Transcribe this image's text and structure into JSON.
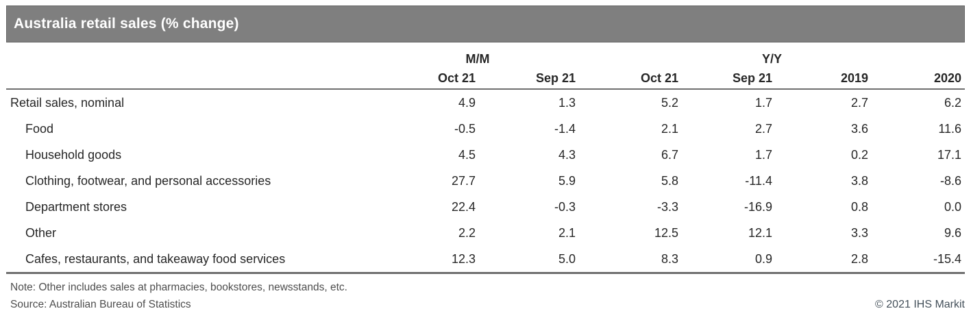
{
  "title": "Australia retail sales (% change)",
  "chart_data": {
    "type": "table",
    "title": "Australia retail sales (% change)",
    "column_groups": [
      {
        "label": "M/M",
        "span": 2
      },
      {
        "label": "Y/Y",
        "span": 4
      }
    ],
    "columns": [
      "Oct 21",
      "Sep 21",
      "Oct 21",
      "Sep 21",
      "2019",
      "2020"
    ],
    "rows": [
      {
        "label": "Retail sales, nominal",
        "indent": false,
        "values": [
          "4.9",
          "1.3",
          "5.2",
          "1.7",
          "2.7",
          "6.2"
        ]
      },
      {
        "label": "Food",
        "indent": true,
        "values": [
          "-0.5",
          "-1.4",
          "2.1",
          "2.7",
          "3.6",
          "11.6"
        ]
      },
      {
        "label": "Household goods",
        "indent": true,
        "values": [
          "4.5",
          "4.3",
          "6.7",
          "1.7",
          "0.2",
          "17.1"
        ]
      },
      {
        "label": "Clothing, footwear, and personal accessories",
        "indent": true,
        "values": [
          "27.7",
          "5.9",
          "5.8",
          "-11.4",
          "3.8",
          "-8.6"
        ]
      },
      {
        "label": "Department stores",
        "indent": true,
        "values": [
          "22.4",
          "-0.3",
          "-3.3",
          "-16.9",
          "0.8",
          "0.0"
        ]
      },
      {
        "label": "Other",
        "indent": true,
        "values": [
          "2.2",
          "2.1",
          "12.5",
          "12.1",
          "3.3",
          "9.6"
        ]
      },
      {
        "label": "Cafes, restaurants, and takeaway food services",
        "indent": true,
        "values": [
          "12.3",
          "5.0",
          "8.3",
          "0.9",
          "2.8",
          "-15.4"
        ]
      }
    ]
  },
  "footer": {
    "note": "Note: Other includes sales at pharmacies, bookstores, newsstands, etc.",
    "source": "Source: Australian Bureau of Statistics",
    "copyright": "© 2021 IHS Markit"
  },
  "colors": {
    "title_bar_bg": "#7f7f7f",
    "title_bar_border": "#666666",
    "title_text": "#ffffff",
    "border_color": "#6e6e6e",
    "body_text": "#262626",
    "note_text": "#4d4d4d",
    "copyright_text": "#44505a"
  }
}
